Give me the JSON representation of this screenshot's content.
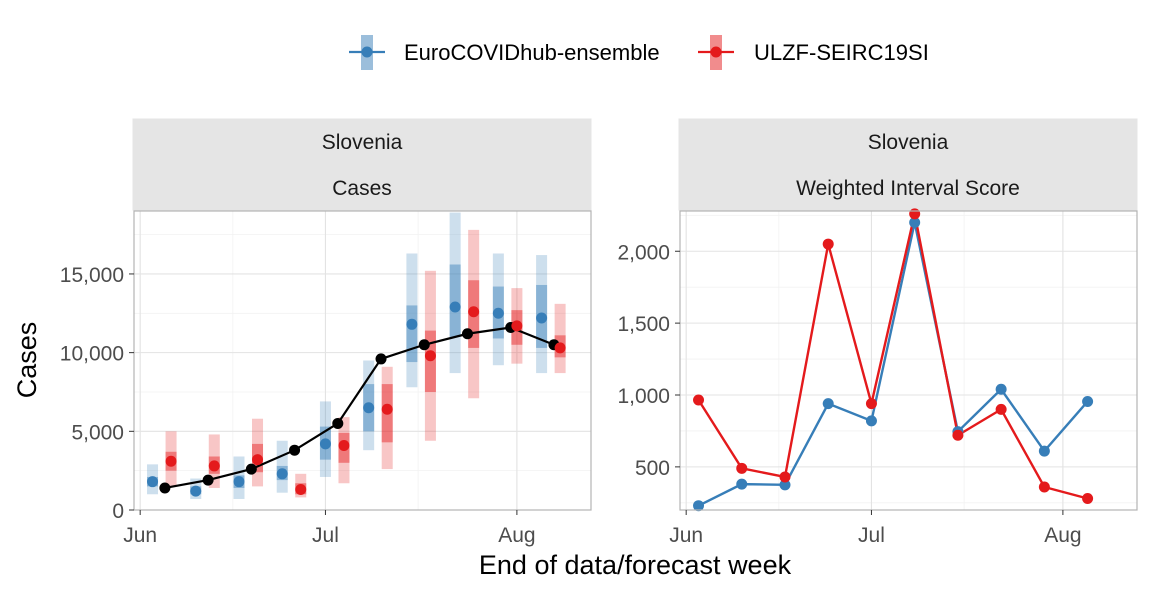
{
  "legend": {
    "items": [
      {
        "label": "EuroCOVIDhub-ensemble",
        "color": "#377EB8"
      },
      {
        "label": "ULZF-SEIRC19SI",
        "color": "#E41A1C"
      }
    ]
  },
  "chart_data": [
    {
      "type": "line",
      "panel_title_1": "Slovenia",
      "panel_title_2": "Cases",
      "ylabel": "Cases",
      "xlabel": "End of data/forecast week",
      "ylim": [
        0,
        19000
      ],
      "yticks": [
        0,
        5000,
        10000,
        15000
      ],
      "ytick_labels": [
        "0",
        "5,000",
        "10,000",
        "15,000"
      ],
      "xticks": [
        "2021-06-01",
        "2021-07-01",
        "2021-08-01"
      ],
      "xtick_labels": [
        "Jun",
        "Jul",
        "Aug"
      ],
      "xlim": [
        "2021-05-31",
        "2021-08-13"
      ],
      "grid": true,
      "observed": {
        "color": "#000000",
        "x": [
          "2021-06-05",
          "2021-06-12",
          "2021-06-19",
          "2021-06-26",
          "2021-07-03",
          "2021-07-10",
          "2021-07-17",
          "2021-07-24",
          "2021-07-31",
          "2021-08-07"
        ],
        "y": [
          1400,
          1900,
          2600,
          3800,
          5500,
          9600,
          10500,
          11200,
          11600,
          10500
        ]
      },
      "series": [
        {
          "name": "EuroCOVIDhub-ensemble",
          "color": "#377EB8",
          "x": [
            "2021-06-03",
            "2021-06-10",
            "2021-06-17",
            "2021-06-24",
            "2021-07-01",
            "2021-07-08",
            "2021-07-15",
            "2021-07-22",
            "2021-07-29",
            "2021-08-05"
          ],
          "median": [
            1800,
            1200,
            1800,
            2300,
            4200,
            6500,
            11800,
            12900,
            12500,
            12200
          ],
          "q25": [
            1500,
            1000,
            1400,
            1900,
            3200,
            5000,
            9400,
            11000,
            10900,
            10300
          ],
          "q75": [
            2100,
            1500,
            2200,
            2800,
            5300,
            8000,
            13000,
            15600,
            14200,
            14300
          ],
          "q05": [
            1000,
            700,
            700,
            1100,
            2100,
            3800,
            7800,
            8700,
            9200,
            8700
          ],
          "q95": [
            2900,
            2000,
            3400,
            4400,
            6900,
            9500,
            16300,
            18900,
            16300,
            16200
          ]
        },
        {
          "name": "ULZF-SEIRC19SI",
          "color": "#E41A1C",
          "x": [
            "2021-06-06",
            "2021-06-13",
            "2021-06-20",
            "2021-06-27",
            "2021-07-04",
            "2021-07-11",
            "2021-07-18",
            "2021-07-25",
            "2021-08-01",
            "2021-08-08"
          ],
          "median": [
            3100,
            2800,
            3200,
            1300,
            4100,
            6400,
            9800,
            12600,
            11700,
            10300
          ],
          "q25": [
            2500,
            2300,
            2400,
            1000,
            3000,
            4300,
            7500,
            10300,
            10500,
            9700
          ],
          "q75": [
            3700,
            3400,
            4200,
            1700,
            4900,
            8000,
            11400,
            14600,
            12700,
            11100
          ],
          "q05": [
            1500,
            1400,
            1500,
            800,
            1700,
            2600,
            4400,
            7100,
            9300,
            8700
          ],
          "q95": [
            5000,
            4800,
            5800,
            2300,
            5900,
            9100,
            15200,
            17800,
            14100,
            13100
          ]
        }
      ]
    },
    {
      "type": "line",
      "panel_title_1": "Slovenia",
      "panel_title_2": "Weighted Interval Score",
      "ylim": [
        200,
        2280
      ],
      "yticks": [
        500,
        1000,
        1500,
        2000
      ],
      "ytick_labels": [
        "500",
        "1,000",
        "1,500",
        "2,000"
      ],
      "xticks": [
        "2021-06-01",
        "2021-07-01",
        "2021-08-01"
      ],
      "xtick_labels": [
        "Jun",
        "Jul",
        "Aug"
      ],
      "xlim": [
        "2021-05-31",
        "2021-08-13"
      ],
      "grid": true,
      "series": [
        {
          "name": "EuroCOVIDhub-ensemble",
          "color": "#377EB8",
          "x": [
            "2021-06-03",
            "2021-06-10",
            "2021-06-17",
            "2021-06-24",
            "2021-07-01",
            "2021-07-08",
            "2021-07-15",
            "2021-07-22",
            "2021-07-29",
            "2021-08-05"
          ],
          "y": [
            230,
            380,
            375,
            940,
            820,
            2200,
            745,
            1040,
            610,
            955
          ]
        },
        {
          "name": "ULZF-SEIRC19SI",
          "color": "#E41A1C",
          "x": [
            "2021-06-03",
            "2021-06-10",
            "2021-06-17",
            "2021-06-24",
            "2021-07-01",
            "2021-07-08",
            "2021-07-15",
            "2021-07-22",
            "2021-07-29",
            "2021-08-05"
          ],
          "y": [
            965,
            490,
            430,
            2050,
            940,
            2260,
            720,
            900,
            360,
            280
          ]
        }
      ]
    }
  ]
}
